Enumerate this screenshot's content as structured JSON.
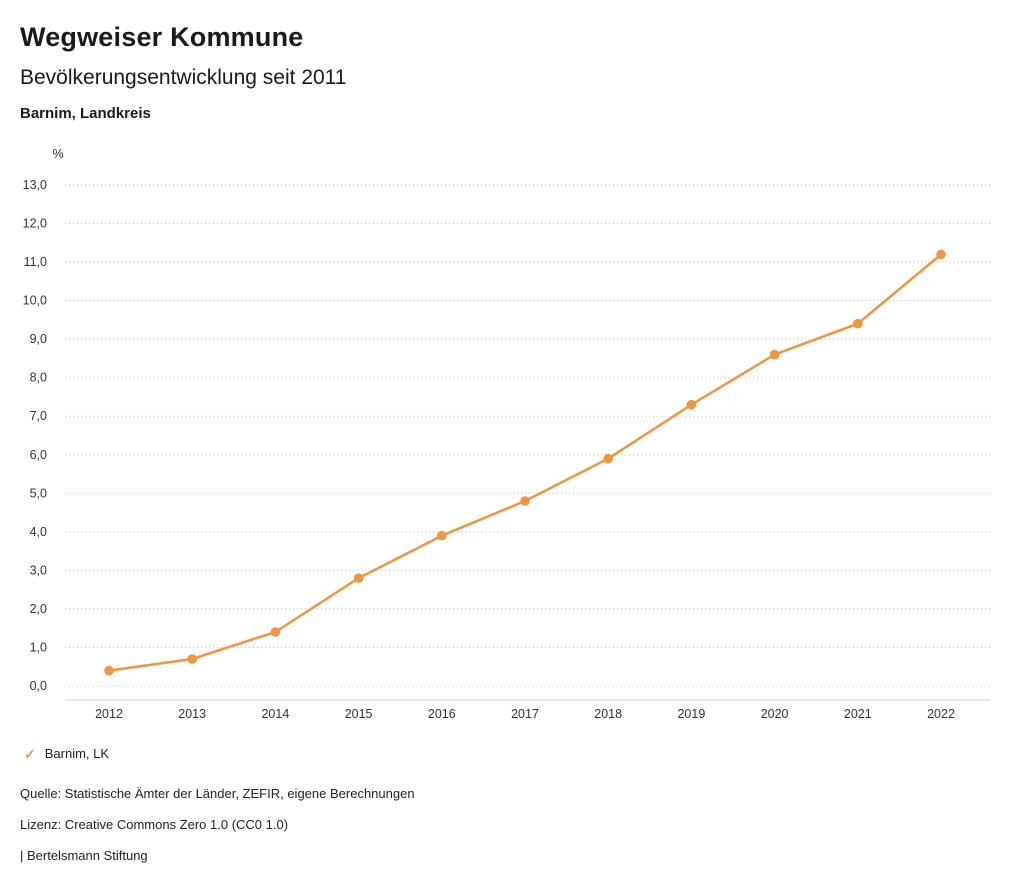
{
  "header": {
    "title": "Wegweiser Kommune",
    "subtitle": "Bevölkerungsentwicklung seit 2011",
    "region": "Barnim, Landkreis"
  },
  "chart_data": {
    "type": "line",
    "title": "Bevölkerungsentwicklung seit 2011",
    "unit_label": "%",
    "categories": [
      "2012",
      "2013",
      "2014",
      "2015",
      "2016",
      "2017",
      "2018",
      "2019",
      "2020",
      "2021",
      "2022"
    ],
    "series": [
      {
        "name": "Barnim, LK",
        "values": [
          0.4,
          0.7,
          1.4,
          2.8,
          3.9,
          4.8,
          5.9,
          7.3,
          8.6,
          9.4,
          11.2
        ]
      }
    ],
    "ylim": [
      0,
      13
    ],
    "ytick_step": 1.0,
    "ytick_labels": [
      "0,0",
      "1,0",
      "2,0",
      "3,0",
      "4,0",
      "5,0",
      "6,0",
      "7,0",
      "8,0",
      "9,0",
      "10,0",
      "11,0",
      "12,0",
      "13,0"
    ],
    "grid": true,
    "gridline_style": "dotted",
    "legend_position": "bottom-left",
    "colors": {
      "line": "#f0963c",
      "marker": "#f0963c",
      "gridline": "#bbbbbb",
      "axis_line": "#cccccc",
      "tick_text": "#333333"
    }
  },
  "legend": {
    "check_icon": "✓",
    "label": "Barnim, LK"
  },
  "footer": {
    "source": "Quelle: Statistische Ämter der Länder, ZEFIR, eigene Berechnungen",
    "license": "Lizenz: Creative Commons Zero 1.0 (CC0 1.0)",
    "brand": "| Bertelsmann Stiftung"
  }
}
